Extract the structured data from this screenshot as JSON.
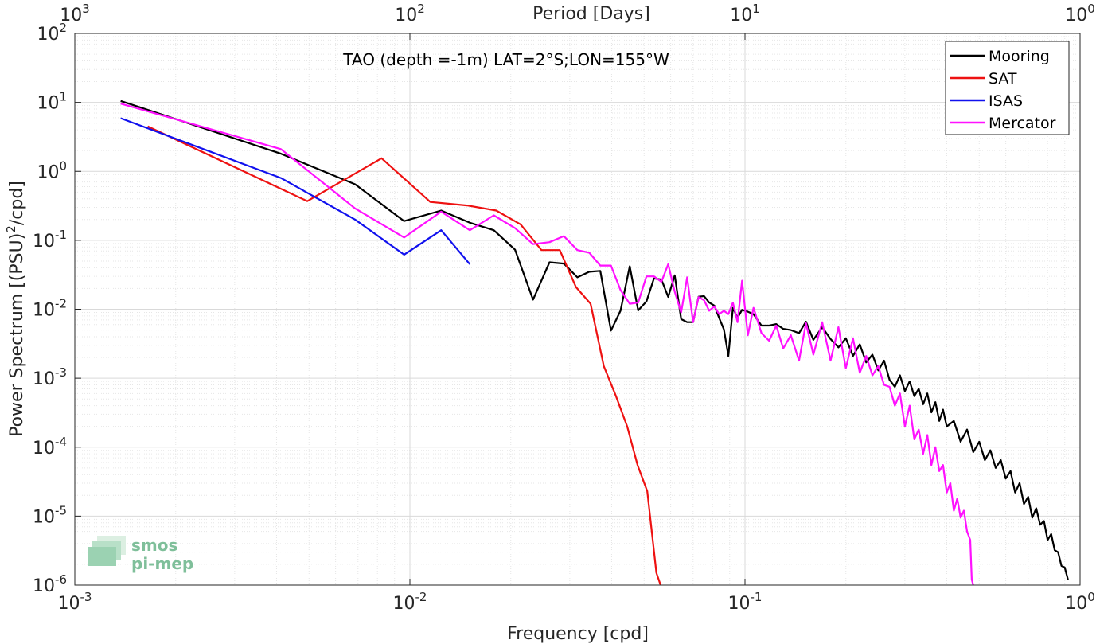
{
  "chart_data": {
    "type": "line",
    "title": "TAO (depth =-1m) LAT=2°S;LON=155°W",
    "xlabel": "Frequency [cpd]",
    "ylabel_main": "Power Spectrum [(PSU)",
    "ylabel_sup": "2",
    "ylabel_tail": "/cpd]",
    "top_axis_label": "Period [Days]",
    "xscale": "log",
    "yscale": "log",
    "xlim": [
      0.001,
      1
    ],
    "ylim": [
      1e-06,
      100
    ],
    "grid": true,
    "legend_position": "top-right",
    "x_ticks": [
      {
        "value": 0.001,
        "base": "10",
        "exp": "-3"
      },
      {
        "value": 0.01,
        "base": "10",
        "exp": "-2"
      },
      {
        "value": 0.1,
        "base": "10",
        "exp": "-1"
      },
      {
        "value": 1,
        "base": "10",
        "exp": "0"
      }
    ],
    "y_ticks": [
      {
        "value": 1e-06,
        "base": "10",
        "exp": "-6"
      },
      {
        "value": 1e-05,
        "base": "10",
        "exp": "-5"
      },
      {
        "value": 0.0001,
        "base": "10",
        "exp": "-4"
      },
      {
        "value": 0.001,
        "base": "10",
        "exp": "-3"
      },
      {
        "value": 0.01,
        "base": "10",
        "exp": "-2"
      },
      {
        "value": 0.1,
        "base": "10",
        "exp": "-1"
      },
      {
        "value": 1,
        "base": "10",
        "exp": "0"
      },
      {
        "value": 10,
        "base": "10",
        "exp": "1"
      },
      {
        "value": 100,
        "base": "10",
        "exp": "2"
      }
    ],
    "top_ticks": [
      {
        "freq": 0.001,
        "base": "10",
        "exp": "3"
      },
      {
        "freq": 0.01,
        "base": "10",
        "exp": "2"
      },
      {
        "freq": 0.1,
        "base": "10",
        "exp": "1"
      },
      {
        "freq": 1,
        "base": "10",
        "exp": "0"
      }
    ],
    "series": [
      {
        "name": "Mooring",
        "color": "#000000",
        "points": [
          [
            0.00137,
            10.5
          ],
          [
            0.00412,
            1.8
          ],
          [
            0.00686,
            0.65
          ],
          [
            0.00961,
            0.19
          ],
          [
            0.0124,
            0.27
          ],
          [
            0.0151,
            0.18
          ],
          [
            0.0178,
            0.14
          ],
          [
            0.0206,
            0.073
          ],
          [
            0.0233,
            0.0138
          ],
          [
            0.0261,
            0.048
          ],
          [
            0.0288,
            0.046
          ],
          [
            0.0316,
            0.029
          ],
          [
            0.0343,
            0.035
          ],
          [
            0.037,
            0.036
          ],
          [
            0.0398,
            0.0049
          ],
          [
            0.0425,
            0.0095
          ],
          [
            0.0453,
            0.042
          ],
          [
            0.048,
            0.0096
          ],
          [
            0.0508,
            0.013
          ],
          [
            0.0535,
            0.028
          ],
          [
            0.0563,
            0.027
          ],
          [
            0.059,
            0.0151
          ],
          [
            0.0617,
            0.031
          ],
          [
            0.0645,
            0.0072
          ],
          [
            0.0672,
            0.0065
          ],
          [
            0.07,
            0.0065
          ],
          [
            0.0727,
            0.0152
          ],
          [
            0.0755,
            0.0155
          ],
          [
            0.0782,
            0.0125
          ],
          [
            0.081,
            0.0113
          ],
          [
            0.0837,
            0.0075
          ],
          [
            0.0865,
            0.0051
          ],
          [
            0.0892,
            0.0021
          ],
          [
            0.092,
            0.0105
          ],
          [
            0.095,
            0.0075
          ],
          [
            0.098,
            0.0098
          ],
          [
            0.102,
            0.0092
          ],
          [
            0.106,
            0.0085
          ],
          [
            0.112,
            0.0058
          ],
          [
            0.118,
            0.0058
          ],
          [
            0.124,
            0.0061
          ],
          [
            0.13,
            0.0052
          ],
          [
            0.137,
            0.005
          ],
          [
            0.145,
            0.0045
          ],
          [
            0.152,
            0.0066
          ],
          [
            0.16,
            0.0036
          ],
          [
            0.17,
            0.0055
          ],
          [
            0.18,
            0.0037
          ],
          [
            0.19,
            0.0028
          ],
          [
            0.2,
            0.0038
          ],
          [
            0.21,
            0.0021
          ],
          [
            0.22,
            0.0031
          ],
          [
            0.23,
            0.0017
          ],
          [
            0.24,
            0.0022
          ],
          [
            0.25,
            0.0013
          ],
          [
            0.26,
            0.0018
          ],
          [
            0.27,
            0.00095
          ],
          [
            0.28,
            0.00075
          ],
          [
            0.29,
            0.0011
          ],
          [
            0.3,
            0.00065
          ],
          [
            0.31,
            0.0009
          ],
          [
            0.32,
            0.00055
          ],
          [
            0.33,
            0.0007
          ],
          [
            0.34,
            0.00042
          ],
          [
            0.35,
            0.0006
          ],
          [
            0.36,
            0.00032
          ],
          [
            0.37,
            0.00045
          ],
          [
            0.38,
            0.00024
          ],
          [
            0.39,
            0.00035
          ],
          [
            0.4,
            0.0002
          ],
          [
            0.42,
            0.00024
          ],
          [
            0.44,
            0.00012
          ],
          [
            0.46,
            0.00018
          ],
          [
            0.48,
            8.5e-05
          ],
          [
            0.5,
            0.00012
          ],
          [
            0.52,
            6.5e-05
          ],
          [
            0.54,
            9e-05
          ],
          [
            0.56,
            5e-05
          ],
          [
            0.58,
            6.5e-05
          ],
          [
            0.6,
            3.5e-05
          ],
          [
            0.62,
            4.5e-05
          ],
          [
            0.64,
            2.2e-05
          ],
          [
            0.66,
            3e-05
          ],
          [
            0.68,
            1.5e-05
          ],
          [
            0.7,
            1.9e-05
          ],
          [
            0.72,
            9.5e-06
          ],
          [
            0.74,
            1.3e-05
          ],
          [
            0.76,
            7.5e-06
          ],
          [
            0.78,
            8.5e-06
          ],
          [
            0.8,
            4.5e-06
          ],
          [
            0.82,
            5.5e-06
          ],
          [
            0.84,
            3.2e-06
          ],
          [
            0.86,
            3e-06
          ],
          [
            0.88,
            1.9e-06
          ],
          [
            0.9,
            1.8e-06
          ],
          [
            0.92,
            1.2e-06
          ]
        ]
      },
      {
        "name": "SAT",
        "color": "#ee1111",
        "points": [
          [
            0.00165,
            4.5
          ],
          [
            0.00494,
            0.37
          ],
          [
            0.00823,
            1.55
          ],
          [
            0.0115,
            0.36
          ],
          [
            0.0148,
            0.32
          ],
          [
            0.0181,
            0.27
          ],
          [
            0.0214,
            0.17
          ],
          [
            0.0247,
            0.072
          ],
          [
            0.028,
            0.072
          ],
          [
            0.0313,
            0.021
          ],
          [
            0.0346,
            0.012
          ],
          [
            0.0379,
            0.0015
          ],
          [
            0.0412,
            0.00055
          ],
          [
            0.0445,
            0.0002
          ],
          [
            0.0478,
            5.5e-05
          ],
          [
            0.0511,
            2.3e-05
          ],
          [
            0.0544,
            1.5e-06
          ],
          [
            0.056,
            1e-06
          ]
        ]
      },
      {
        "name": "ISAS",
        "color": "#1111ee",
        "points": [
          [
            0.00137,
            5.9
          ],
          [
            0.00412,
            0.8
          ],
          [
            0.00686,
            0.2
          ],
          [
            0.00961,
            0.062
          ],
          [
            0.0124,
            0.14
          ],
          [
            0.0151,
            0.045
          ]
        ]
      },
      {
        "name": "Mercator",
        "color": "#ff11ff",
        "points": [
          [
            0.00137,
            9.6
          ],
          [
            0.00412,
            2.1
          ],
          [
            0.00686,
            0.29
          ],
          [
            0.00961,
            0.11
          ],
          [
            0.0124,
            0.26
          ],
          [
            0.0151,
            0.14
          ],
          [
            0.0178,
            0.23
          ],
          [
            0.0206,
            0.15
          ],
          [
            0.0233,
            0.088
          ],
          [
            0.0261,
            0.094
          ],
          [
            0.0288,
            0.115
          ],
          [
            0.0316,
            0.072
          ],
          [
            0.0343,
            0.066
          ],
          [
            0.037,
            0.043
          ],
          [
            0.0398,
            0.043
          ],
          [
            0.0425,
            0.019
          ],
          [
            0.0453,
            0.012
          ],
          [
            0.048,
            0.0125
          ],
          [
            0.0508,
            0.03
          ],
          [
            0.0535,
            0.03
          ],
          [
            0.0563,
            0.025
          ],
          [
            0.059,
            0.045
          ],
          [
            0.0617,
            0.018
          ],
          [
            0.0645,
            0.009
          ],
          [
            0.0672,
            0.029
          ],
          [
            0.07,
            0.0065
          ],
          [
            0.0727,
            0.015
          ],
          [
            0.0755,
            0.0135
          ],
          [
            0.0782,
            0.0095
          ],
          [
            0.081,
            0.011
          ],
          [
            0.0837,
            0.0085
          ],
          [
            0.0865,
            0.0095
          ],
          [
            0.0892,
            0.0085
          ],
          [
            0.092,
            0.0125
          ],
          [
            0.095,
            0.0065
          ],
          [
            0.098,
            0.026
          ],
          [
            0.102,
            0.0042
          ],
          [
            0.106,
            0.0105
          ],
          [
            0.112,
            0.0045
          ],
          [
            0.118,
            0.0035
          ],
          [
            0.124,
            0.0058
          ],
          [
            0.13,
            0.0027
          ],
          [
            0.137,
            0.0042
          ],
          [
            0.145,
            0.0018
          ],
          [
            0.152,
            0.0063
          ],
          [
            0.16,
            0.0022
          ],
          [
            0.17,
            0.0065
          ],
          [
            0.18,
            0.0018
          ],
          [
            0.19,
            0.0055
          ],
          [
            0.2,
            0.0014
          ],
          [
            0.21,
            0.0038
          ],
          [
            0.22,
            0.0012
          ],
          [
            0.23,
            0.0021
          ],
          [
            0.24,
            0.0011
          ],
          [
            0.25,
            0.0015
          ],
          [
            0.26,
            0.0008
          ],
          [
            0.27,
            0.00075
          ],
          [
            0.28,
            0.0004
          ],
          [
            0.29,
            0.0006
          ],
          [
            0.3,
            0.0002
          ],
          [
            0.31,
            0.0004
          ],
          [
            0.32,
            0.00013
          ],
          [
            0.33,
            0.00018
          ],
          [
            0.34,
            8e-05
          ],
          [
            0.35,
            0.00015
          ],
          [
            0.36,
            5.5e-05
          ],
          [
            0.37,
            0.0001
          ],
          [
            0.38,
            4.5e-05
          ],
          [
            0.39,
            5.5e-05
          ],
          [
            0.4,
            2.2e-05
          ],
          [
            0.41,
            3e-05
          ],
          [
            0.42,
            1.2e-05
          ],
          [
            0.43,
            1.8e-05
          ],
          [
            0.44,
            9.5e-06
          ],
          [
            0.45,
            1.2e-05
          ],
          [
            0.46,
            6e-06
          ],
          [
            0.47,
            4.5e-06
          ],
          [
            0.475,
            1.2e-06
          ],
          [
            0.48,
            1e-06
          ]
        ]
      }
    ]
  },
  "logo": {
    "line1": "smos",
    "line2": "pi-mep"
  }
}
